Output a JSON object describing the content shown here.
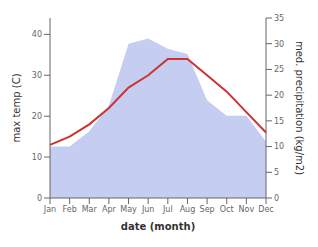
{
  "chart_data": {
    "type": "line",
    "xlabel": "date (month)",
    "ylabel": "max temp (C)",
    "y2label": "med. precipitation (kg/m2)",
    "categories": [
      "Jan",
      "Feb",
      "Mar",
      "Apr",
      "May",
      "Jun",
      "Jul",
      "Aug",
      "Sep",
      "Oct",
      "Nov",
      "Dec"
    ],
    "series": [
      {
        "type": "area",
        "axis": "y2",
        "color": "#c5cef0",
        "values": [
          10,
          10,
          13,
          18,
          30,
          31,
          29,
          28,
          19,
          16,
          16,
          11
        ]
      },
      {
        "type": "line",
        "color": "#cc3333",
        "values": [
          13,
          15,
          18,
          22,
          27,
          30,
          34,
          34,
          30,
          26,
          21,
          16
        ]
      }
    ],
    "ylim": [
      0,
      44
    ],
    "yticks": [
      0,
      10,
      20,
      30,
      40
    ],
    "y2lim": [
      0,
      35
    ],
    "y2ticks": [
      0,
      5,
      10,
      15,
      20,
      25,
      30,
      35
    ],
    "grid": false
  }
}
